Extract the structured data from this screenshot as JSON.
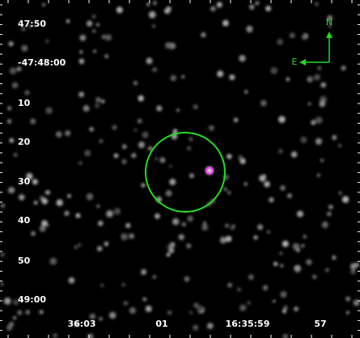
{
  "y_labels": [
    "47:50",
    "-47:48:00",
    "10",
    "20",
    "30",
    "40",
    "50",
    "49:00"
  ],
  "x_labels": [
    "36:03",
    "01",
    "16:35:59",
    "57"
  ],
  "compass": {
    "north": "N",
    "east": "E"
  }
}
